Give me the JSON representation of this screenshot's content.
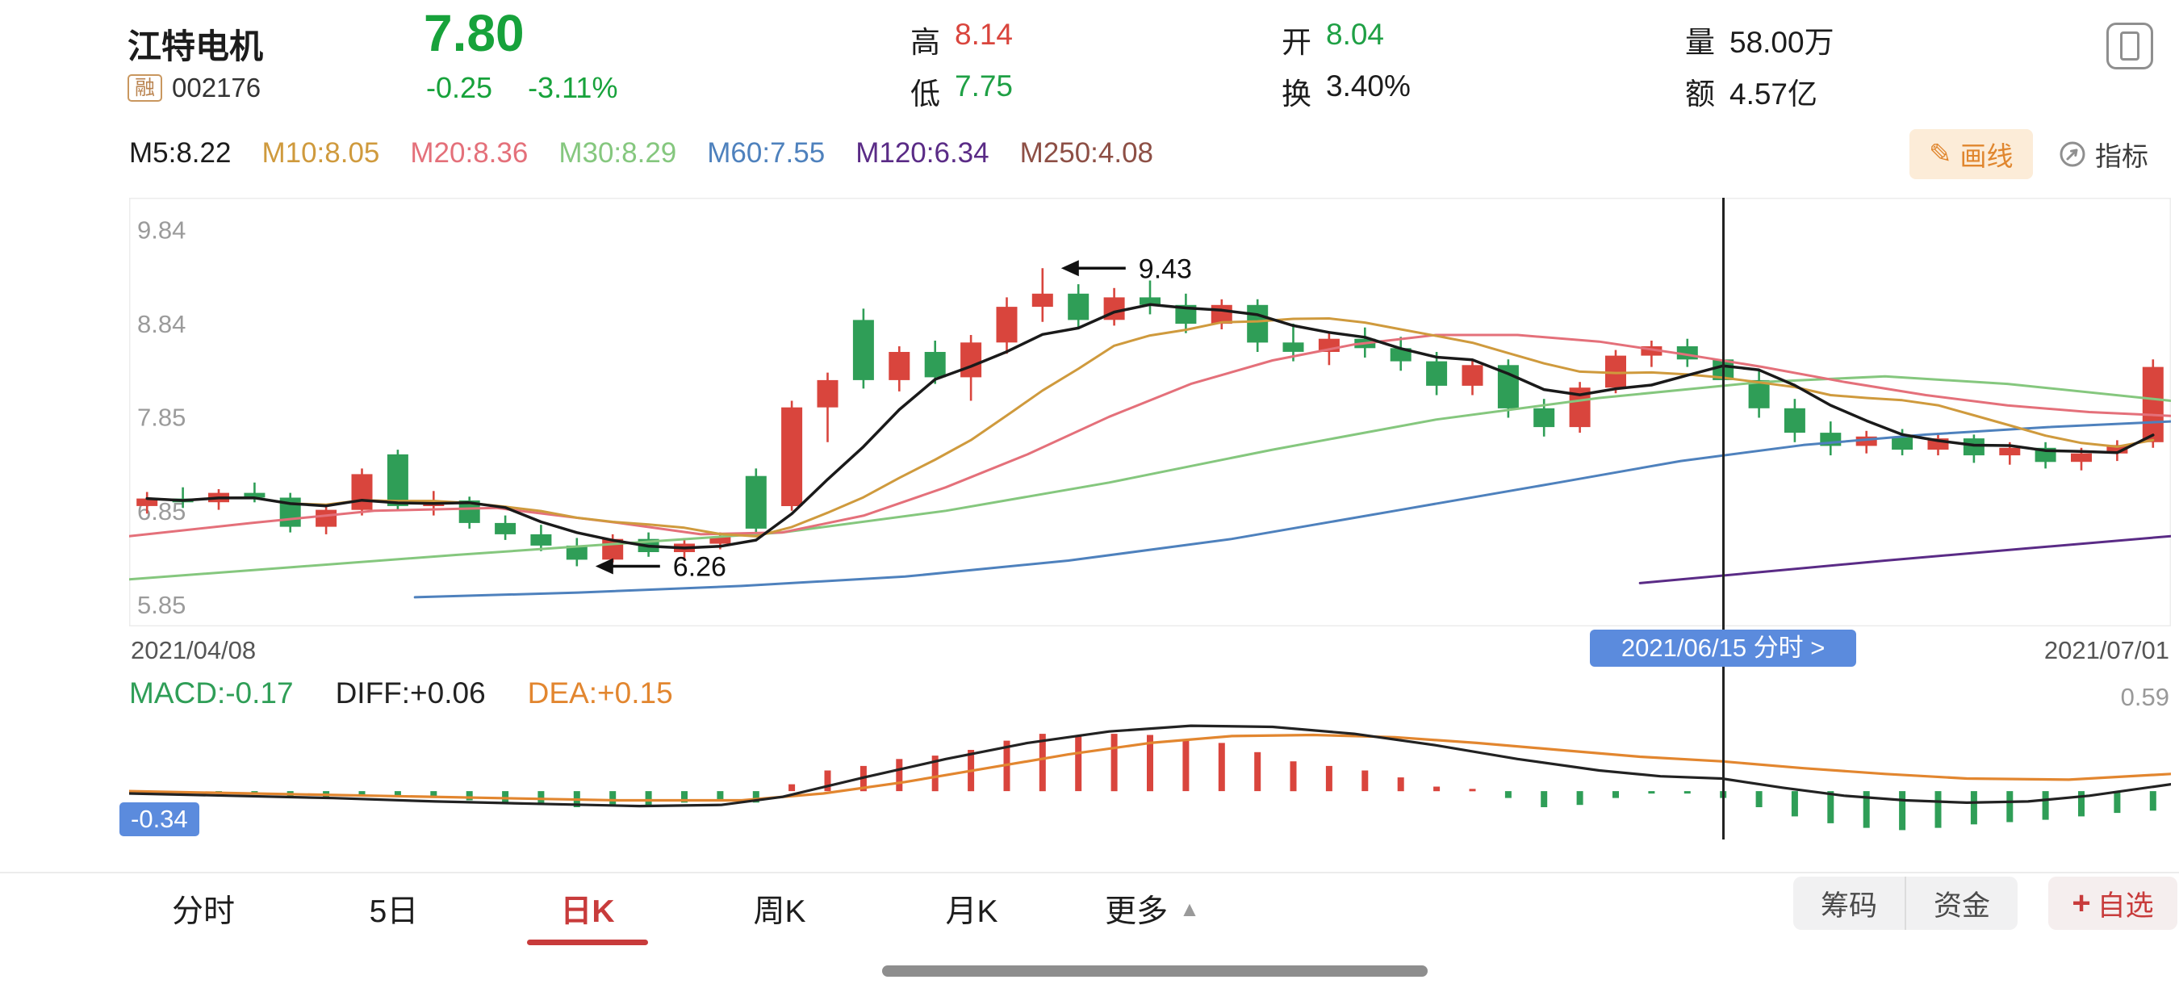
{
  "header": {
    "stock_name": "江特电机",
    "margin_badge": "融",
    "stock_code": "002176",
    "price": "7.80",
    "change": "-0.25",
    "change_pct": "-3.11%",
    "price_color": "#17a23b",
    "stats": [
      {
        "key": "high",
        "label": "高",
        "value": "8.14",
        "color": "#d9453d"
      },
      {
        "key": "low",
        "label": "低",
        "value": "7.75",
        "color": "#1fa045"
      },
      {
        "key": "open",
        "label": "开",
        "value": "8.04",
        "color": "#1fa045"
      },
      {
        "key": "turnover",
        "label": "换",
        "value": "3.40%",
        "color": "#1c1c1c"
      },
      {
        "key": "volume",
        "label": "量",
        "value": "58.00万",
        "color": "#1c1c1c"
      },
      {
        "key": "amount",
        "label": "额",
        "value": "4.57亿",
        "color": "#1c1c1c"
      }
    ]
  },
  "ma_bar": {
    "items": [
      {
        "label": "M5:8.22",
        "color": "#1c1c1c"
      },
      {
        "label": "M10:8.05",
        "color": "#cf9a3d"
      },
      {
        "label": "M20:8.36",
        "color": "#e4707a"
      },
      {
        "label": "M30:8.29",
        "color": "#85c77e"
      },
      {
        "label": "M60:7.55",
        "color": "#4e81bd"
      },
      {
        "label": "M120:6.34",
        "color": "#5a2b86"
      },
      {
        "label": "M250:4.08",
        "color": "#8d4f45"
      }
    ],
    "draw_button": "画线",
    "draw_icon": "✎",
    "indicator_button": "指标"
  },
  "chart_data": {
    "type": "candlestick",
    "y_ticks": [
      9.84,
      8.84,
      7.85,
      6.85,
      5.85
    ],
    "y_range": [
      5.62,
      10.18
    ],
    "x_labels": {
      "start": "2021/04/08",
      "crosshair": "2021/06/15  分时 >",
      "end": "2021/07/01"
    },
    "up_color": "#d9453d",
    "down_color": "#2f9e57",
    "candles": [
      [
        6.9,
        7.05,
        6.82,
        6.98
      ],
      [
        6.98,
        7.1,
        6.88,
        6.94
      ],
      [
        6.94,
        7.08,
        6.86,
        7.04
      ],
      [
        7.04,
        7.15,
        6.94,
        6.99
      ],
      [
        6.99,
        7.04,
        6.62,
        6.68
      ],
      [
        6.68,
        6.92,
        6.6,
        6.86
      ],
      [
        6.86,
        7.3,
        6.8,
        7.24
      ],
      [
        7.45,
        7.5,
        6.85,
        6.9
      ],
      [
        6.9,
        7.06,
        6.8,
        6.96
      ],
      [
        6.96,
        7.0,
        6.66,
        6.72
      ],
      [
        6.72,
        6.8,
        6.54,
        6.6
      ],
      [
        6.6,
        6.7,
        6.42,
        6.48
      ],
      [
        6.48,
        6.56,
        6.26,
        6.33
      ],
      [
        6.33,
        6.6,
        6.3,
        6.55
      ],
      [
        6.55,
        6.62,
        6.36,
        6.41
      ],
      [
        6.41,
        6.56,
        6.34,
        6.5
      ],
      [
        6.5,
        6.62,
        6.44,
        6.57
      ],
      [
        7.22,
        7.3,
        6.6,
        6.66
      ],
      [
        6.9,
        8.02,
        6.85,
        7.95
      ],
      [
        7.95,
        8.32,
        7.58,
        8.24
      ],
      [
        8.88,
        9.0,
        8.15,
        8.24
      ],
      [
        8.24,
        8.6,
        8.12,
        8.54
      ],
      [
        8.54,
        8.66,
        8.2,
        8.27
      ],
      [
        8.27,
        8.72,
        8.02,
        8.64
      ],
      [
        8.64,
        9.12,
        8.52,
        9.02
      ],
      [
        9.02,
        9.43,
        8.86,
        9.16
      ],
      [
        9.16,
        9.26,
        8.78,
        8.88
      ],
      [
        8.88,
        9.22,
        8.82,
        9.12
      ],
      [
        9.12,
        9.3,
        8.94,
        9.04
      ],
      [
        9.04,
        9.16,
        8.74,
        8.84
      ],
      [
        8.84,
        9.1,
        8.78,
        9.04
      ],
      [
        9.04,
        9.1,
        8.54,
        8.64
      ],
      [
        8.64,
        8.84,
        8.44,
        8.54
      ],
      [
        8.54,
        8.76,
        8.4,
        8.68
      ],
      [
        8.68,
        8.8,
        8.48,
        8.58
      ],
      [
        8.58,
        8.7,
        8.34,
        8.44
      ],
      [
        8.44,
        8.54,
        8.08,
        8.18
      ],
      [
        8.18,
        8.46,
        8.08,
        8.4
      ],
      [
        8.4,
        8.46,
        7.84,
        7.94
      ],
      [
        7.94,
        8.04,
        7.64,
        7.74
      ],
      [
        7.74,
        8.22,
        7.68,
        8.16
      ],
      [
        8.16,
        8.56,
        8.1,
        8.5
      ],
      [
        8.5,
        8.66,
        8.38,
        8.6
      ],
      [
        8.6,
        8.68,
        8.38,
        8.46
      ],
      [
        8.46,
        8.54,
        8.14,
        8.24
      ],
      [
        8.24,
        8.34,
        7.84,
        7.94
      ],
      [
        7.94,
        8.04,
        7.58,
        7.68
      ],
      [
        7.68,
        7.8,
        7.44,
        7.54
      ],
      [
        7.54,
        7.7,
        7.46,
        7.64
      ],
      [
        7.64,
        7.72,
        7.44,
        7.5
      ],
      [
        7.5,
        7.68,
        7.44,
        7.62
      ],
      [
        7.62,
        7.66,
        7.36,
        7.44
      ],
      [
        7.44,
        7.58,
        7.34,
        7.52
      ],
      [
        7.52,
        7.58,
        7.3,
        7.37
      ],
      [
        7.37,
        7.52,
        7.28,
        7.46
      ],
      [
        7.46,
        7.6,
        7.38,
        7.55
      ],
      [
        7.58,
        8.46,
        7.52,
        8.38
      ]
    ],
    "ma_computed": [
      {
        "name": "M5",
        "window": 5,
        "color": "#1a1a1a",
        "width": 3.5
      },
      {
        "name": "M10",
        "window": 10,
        "color": "#cf9a3d",
        "width": 3
      }
    ],
    "ma_lines": [
      {
        "name": "M20",
        "color": "#e4707a",
        "points": [
          [
            0,
            6.58
          ],
          [
            0.06,
            6.72
          ],
          [
            0.12,
            6.85
          ],
          [
            0.18,
            6.88
          ],
          [
            0.24,
            6.72
          ],
          [
            0.28,
            6.6
          ],
          [
            0.32,
            6.62
          ],
          [
            0.36,
            6.8
          ],
          [
            0.4,
            7.1
          ],
          [
            0.44,
            7.45
          ],
          [
            0.48,
            7.85
          ],
          [
            0.52,
            8.2
          ],
          [
            0.56,
            8.45
          ],
          [
            0.6,
            8.62
          ],
          [
            0.64,
            8.72
          ],
          [
            0.68,
            8.72
          ],
          [
            0.72,
            8.65
          ],
          [
            0.76,
            8.52
          ],
          [
            0.8,
            8.38
          ],
          [
            0.84,
            8.22
          ],
          [
            0.88,
            8.08
          ],
          [
            0.92,
            7.97
          ],
          [
            0.96,
            7.9
          ],
          [
            1,
            7.86
          ]
        ]
      },
      {
        "name": "M30",
        "color": "#85c77e",
        "points": [
          [
            0,
            6.12
          ],
          [
            0.08,
            6.25
          ],
          [
            0.16,
            6.38
          ],
          [
            0.24,
            6.5
          ],
          [
            0.32,
            6.62
          ],
          [
            0.4,
            6.85
          ],
          [
            0.48,
            7.15
          ],
          [
            0.56,
            7.5
          ],
          [
            0.64,
            7.82
          ],
          [
            0.72,
            8.05
          ],
          [
            0.8,
            8.22
          ],
          [
            0.86,
            8.28
          ],
          [
            0.92,
            8.2
          ],
          [
            1,
            8.02
          ]
        ]
      },
      {
        "name": "M60",
        "color": "#4e81bd",
        "points": [
          [
            0.14,
            5.93
          ],
          [
            0.22,
            5.98
          ],
          [
            0.3,
            6.05
          ],
          [
            0.38,
            6.15
          ],
          [
            0.46,
            6.32
          ],
          [
            0.54,
            6.55
          ],
          [
            0.62,
            6.85
          ],
          [
            0.7,
            7.15
          ],
          [
            0.76,
            7.38
          ],
          [
            0.82,
            7.55
          ],
          [
            0.88,
            7.66
          ],
          [
            0.94,
            7.74
          ],
          [
            1,
            7.8
          ]
        ]
      },
      {
        "name": "M120",
        "color": "#5a2b86",
        "points": [
          [
            0.74,
            6.08
          ],
          [
            0.8,
            6.2
          ],
          [
            0.86,
            6.32
          ],
          [
            0.93,
            6.45
          ],
          [
            1,
            6.58
          ]
        ]
      }
    ],
    "annotations": [
      {
        "text": "9.43",
        "candle_index": 25,
        "at": "high"
      },
      {
        "text": "6.26",
        "candle_index": 12,
        "at": "low"
      }
    ],
    "crosshair_index": 44
  },
  "macd": {
    "labels": [
      {
        "text": "MACD:-0.17",
        "color": "#2f9e57"
      },
      {
        "text": "DIFF:+0.06",
        "color": "#222222"
      },
      {
        "text": "DEA:+0.15",
        "color": "#e2862f"
      }
    ],
    "scale_max_label": "0.59",
    "scale_min_label": "-0.34",
    "range": [
      -0.4,
      0.62
    ],
    "diff_color": "#222222",
    "dea_color": "#e2862f",
    "hist": [
      -0.02,
      -0.02,
      -0.01,
      -0.02,
      -0.05,
      -0.06,
      -0.03,
      -0.05,
      -0.06,
      -0.08,
      -0.1,
      -0.12,
      -0.14,
      -0.12,
      -0.12,
      -0.1,
      -0.09,
      -0.1,
      0.06,
      0.18,
      0.22,
      0.28,
      0.31,
      0.36,
      0.44,
      0.5,
      0.48,
      0.5,
      0.49,
      0.44,
      0.42,
      0.34,
      0.26,
      0.22,
      0.18,
      0.12,
      0.04,
      0.02,
      -0.06,
      -0.14,
      -0.12,
      -0.06,
      -0.02,
      -0.02,
      -0.06,
      -0.14,
      -0.22,
      -0.28,
      -0.32,
      -0.34,
      -0.32,
      -0.29,
      -0.27,
      -0.25,
      -0.22,
      -0.19,
      -0.17
    ],
    "diff_points": [
      [
        0,
        -0.02
      ],
      [
        0.05,
        -0.04
      ],
      [
        0.1,
        -0.06
      ],
      [
        0.15,
        -0.09
      ],
      [
        0.2,
        -0.11
      ],
      [
        0.25,
        -0.13
      ],
      [
        0.29,
        -0.12
      ],
      [
        0.32,
        -0.05
      ],
      [
        0.36,
        0.12
      ],
      [
        0.4,
        0.28
      ],
      [
        0.44,
        0.42
      ],
      [
        0.48,
        0.52
      ],
      [
        0.52,
        0.57
      ],
      [
        0.56,
        0.56
      ],
      [
        0.6,
        0.5
      ],
      [
        0.64,
        0.4
      ],
      [
        0.68,
        0.28
      ],
      [
        0.72,
        0.18
      ],
      [
        0.75,
        0.13
      ],
      [
        0.78,
        0.11
      ],
      [
        0.81,
        0.03
      ],
      [
        0.84,
        -0.04
      ],
      [
        0.87,
        -0.08
      ],
      [
        0.9,
        -0.1
      ],
      [
        0.93,
        -0.09
      ],
      [
        0.96,
        -0.04
      ],
      [
        1,
        0.06
      ]
    ],
    "dea_points": [
      [
        0,
        0.0
      ],
      [
        0.06,
        -0.02
      ],
      [
        0.12,
        -0.04
      ],
      [
        0.18,
        -0.06
      ],
      [
        0.24,
        -0.08
      ],
      [
        0.3,
        -0.08
      ],
      [
        0.34,
        -0.02
      ],
      [
        0.38,
        0.08
      ],
      [
        0.42,
        0.2
      ],
      [
        0.46,
        0.32
      ],
      [
        0.5,
        0.42
      ],
      [
        0.54,
        0.48
      ],
      [
        0.58,
        0.49
      ],
      [
        0.62,
        0.47
      ],
      [
        0.66,
        0.42
      ],
      [
        0.7,
        0.36
      ],
      [
        0.74,
        0.3
      ],
      [
        0.78,
        0.26
      ],
      [
        0.82,
        0.2
      ],
      [
        0.86,
        0.15
      ],
      [
        0.9,
        0.11
      ],
      [
        0.95,
        0.1
      ],
      [
        1,
        0.15
      ]
    ]
  },
  "tabs": [
    {
      "key": "fenshi",
      "label": "分时"
    },
    {
      "key": "5day",
      "label": "5日"
    },
    {
      "key": "daily-k",
      "label": "日K",
      "active": true
    },
    {
      "key": "weekly-k",
      "label": "周K"
    },
    {
      "key": "monthly-k",
      "label": "月K"
    },
    {
      "key": "more",
      "label": "更多",
      "has_arrow": true
    }
  ],
  "bottom_actions": {
    "chips": "筹码",
    "funds": "资金",
    "watch_plus": "+",
    "watch_label": "自选"
  }
}
